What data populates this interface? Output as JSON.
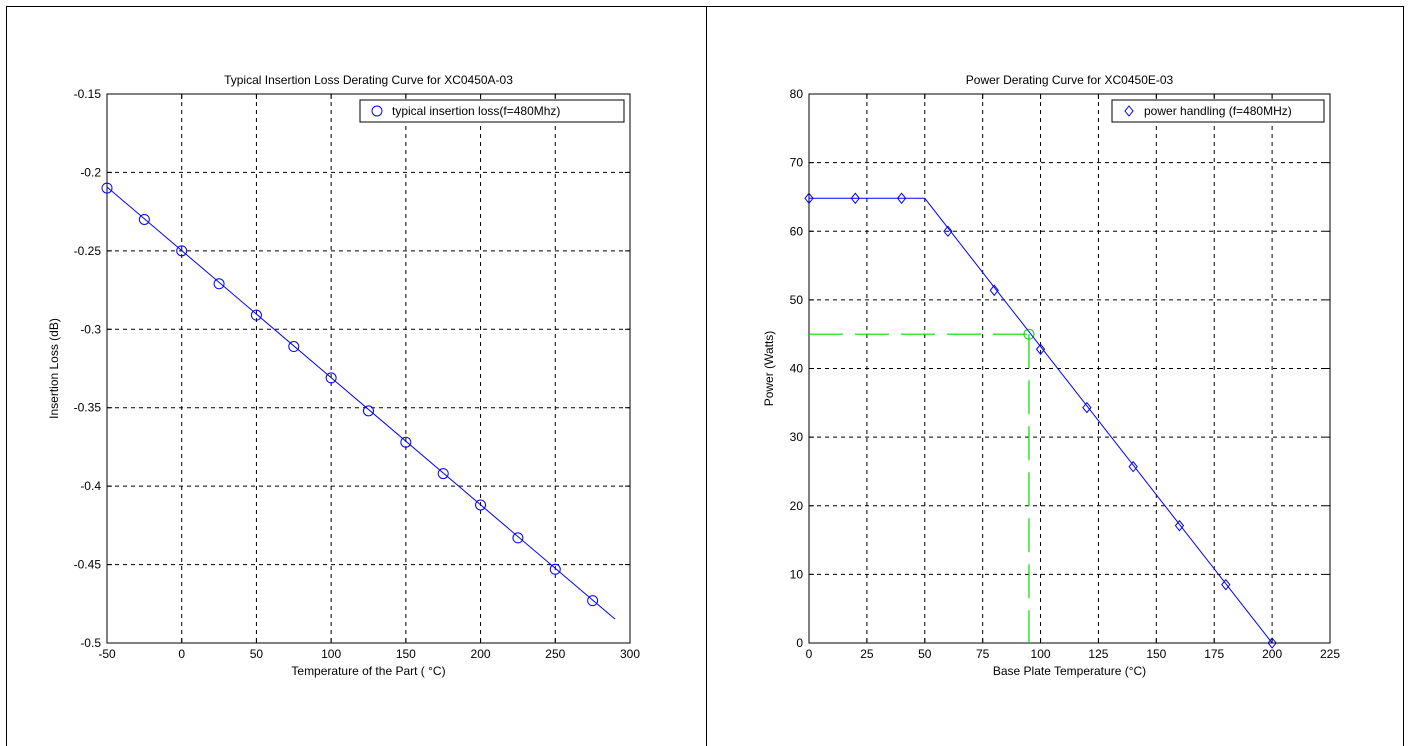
{
  "chart_data": [
    {
      "type": "line",
      "title": "Typical Insertion Loss Derating Curve for XC0450A-03",
      "xlabel": "Temperature of the Part ( °C)",
      "ylabel": "Insertion Loss (dB)",
      "xlim": [
        -50,
        300
      ],
      "ylim": [
        -0.5,
        -0.15
      ],
      "xticks": [
        "-50",
        "0",
        "50",
        "100",
        "150",
        "200",
        "250",
        "300"
      ],
      "xtick_values": [
        -50,
        0,
        50,
        100,
        150,
        200,
        250,
        300
      ],
      "yticks": [
        "-0.15",
        "-0.2",
        "-0.25",
        "-0.3",
        "-0.35",
        "-0.4",
        "-0.45",
        "-0.5"
      ],
      "ytick_values": [
        -0.15,
        -0.2,
        -0.25,
        -0.3,
        -0.35,
        -0.4,
        -0.45,
        -0.5
      ],
      "grid": true,
      "legend_position": "top-right",
      "line": {
        "x": [
          -50,
          290
        ],
        "y": [
          -0.2093,
          -0.4848
        ],
        "color": "#0000ff"
      },
      "series": [
        {
          "name": "typical insertion loss(f=480Mhz)",
          "marker": "circle",
          "color": "#0000ff",
          "x": [
            -50,
            -25,
            0,
            25,
            50,
            75,
            100,
            125,
            150,
            175,
            200,
            225,
            250,
            275
          ],
          "y": [
            -0.21,
            -0.23,
            -0.25,
            -0.271,
            -0.291,
            -0.311,
            -0.331,
            -0.352,
            -0.372,
            -0.392,
            -0.412,
            -0.433,
            -0.453,
            -0.473
          ]
        }
      ]
    },
    {
      "type": "line",
      "title": "Power Derating Curve for XC0450E-03",
      "xlabel": "Base Plate Temperature (°C)",
      "ylabel": "Power (Watts)",
      "xlim": [
        0,
        225
      ],
      "ylim": [
        0,
        80
      ],
      "xticks": [
        "0",
        "25",
        "50",
        "75",
        "100",
        "125",
        "150",
        "175",
        "200",
        "225"
      ],
      "xtick_values": [
        0,
        25,
        50,
        75,
        100,
        125,
        150,
        175,
        200,
        225
      ],
      "yticks": [
        "0",
        "10",
        "20",
        "30",
        "40",
        "50",
        "60",
        "70",
        "80"
      ],
      "ytick_values": [
        0,
        10,
        20,
        30,
        40,
        50,
        60,
        70,
        80
      ],
      "grid": true,
      "legend_position": "top-right",
      "line": {
        "x": [
          0,
          50,
          200
        ],
        "y": [
          64.8,
          64.8,
          0
        ],
        "color": "#0000ff"
      },
      "series": [
        {
          "name": "power handling (f=480MHz)",
          "marker": "diamond",
          "color": "#0000ff",
          "x": [
            0,
            20,
            40,
            60,
            80,
            100,
            120,
            140,
            160,
            180,
            200
          ],
          "y": [
            64.8,
            64.8,
            64.8,
            60,
            51.4,
            42.8,
            34.3,
            25.7,
            17.1,
            8.5,
            0
          ]
        }
      ],
      "annotation": {
        "color": "#00dd00",
        "x": 95,
        "y": 45
      }
    }
  ]
}
